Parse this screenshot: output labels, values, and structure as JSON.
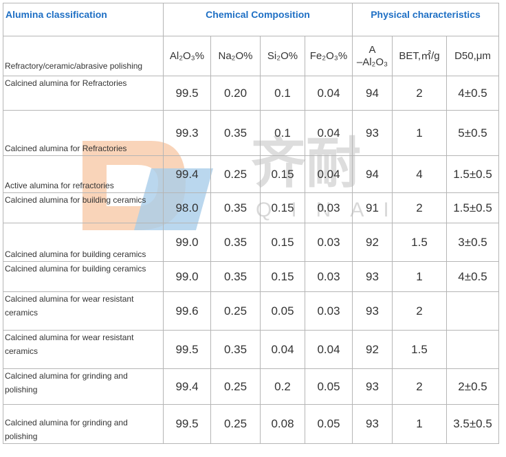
{
  "table": {
    "header": {
      "classification": "Alumina classification",
      "chemical": "Chemical Composition",
      "physical": "Physical  characteristics"
    },
    "subheader": {
      "label": "Refractory/ceramic/abrasive polishing",
      "columns": [
        "Al₂O₃%",
        "Na₂O%",
        "Si₂O%",
        "Fe₂O₃%",
        "A\n–Al₂O₃",
        "BET,㎡/g",
        "D50,μm"
      ]
    },
    "rows": [
      {
        "label": "Calcined alumina for Refractories",
        "cells": [
          "99.5",
          "0.20",
          "0.1",
          "0.04",
          "94",
          "2",
          "4±0.5"
        ]
      },
      {
        "label": "Calcined alumina for Refractories",
        "cells": [
          "99.3",
          "0.35",
          "0.1",
          "0.04",
          "93",
          "1",
          "5±0.5"
        ]
      },
      {
        "label": "Active alumina for refractories",
        "cells": [
          "99.4",
          "0.25",
          "0.15",
          "0.04",
          "94",
          "4",
          "1.5±0.5"
        ]
      },
      {
        "label": "Calcined alumina for building ceramics",
        "cells": [
          "98.0",
          "0.35",
          "0.15",
          "0.03",
          "91",
          "2",
          "1.5±0.5"
        ]
      },
      {
        "label": "Calcined alumina for building ceramics",
        "cells": [
          "99.0",
          "0.35",
          "0.15",
          "0.03",
          "92",
          "1.5",
          "3±0.5"
        ]
      },
      {
        "label": "Calcined alumina for building ceramics",
        "cells": [
          "99.0",
          "0.35",
          "0.15",
          "0.03",
          "93",
          "1",
          "4±0.5"
        ]
      },
      {
        "label": "Calcined alumina for wear resistant ceramics",
        "cells": [
          "99.6",
          "0.25",
          "0.05",
          "0.03",
          "93",
          "2",
          null
        ]
      },
      {
        "label": "Calcined alumina for wear resistant ceramics",
        "cells": [
          "99.5",
          "0.35",
          "0.04",
          "0.04",
          "92",
          "1.5",
          null
        ]
      },
      {
        "label": "Calcined alumina for grinding and polishing",
        "cells": [
          "99.4",
          "0.25",
          "0.2",
          "0.05",
          "93",
          "2",
          "2±0.5"
        ]
      },
      {
        "label": "Calcined alumina for grinding and polishing",
        "cells": [
          "99.5",
          "0.25",
          "0.08",
          "0.05",
          "93",
          "1",
          "3.5±0.5"
        ]
      }
    ]
  },
  "watermark": {
    "cn": "齐耐",
    "en": "QINAI"
  }
}
